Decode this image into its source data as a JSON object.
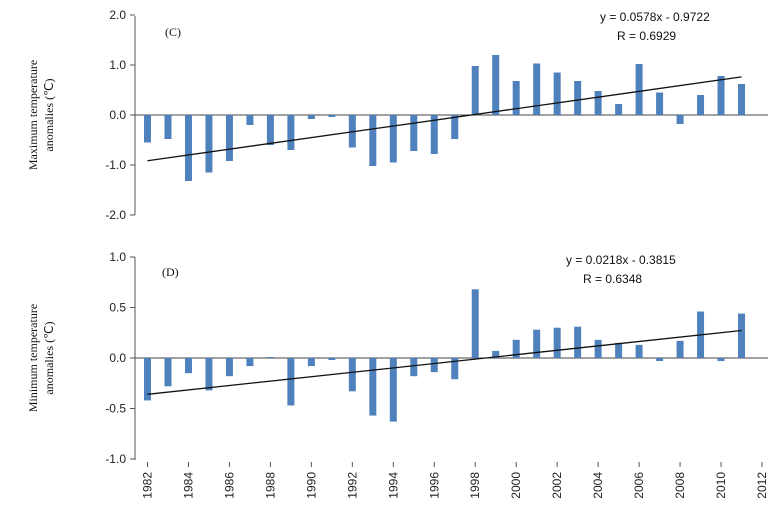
{
  "chart_data": [
    {
      "type": "bar",
      "panel_label": "(C)",
      "ylabel_lines": [
        "Maximum temperature",
        "anomalies (℃)"
      ],
      "ylim": [
        -2.0,
        2.0
      ],
      "yticks": [
        "2.0",
        "1.0",
        "0.0",
        "-1.0",
        "-2.0"
      ],
      "ytick_values": [
        2.0,
        1.0,
        0.0,
        -1.0,
        -2.0
      ],
      "x": [
        1982,
        1983,
        1984,
        1985,
        1986,
        1987,
        1988,
        1989,
        1990,
        1991,
        1992,
        1993,
        1994,
        1995,
        1996,
        1997,
        1998,
        1999,
        2000,
        2001,
        2002,
        2003,
        2004,
        2005,
        2006,
        2007,
        2008,
        2009,
        2010,
        2011
      ],
      "values": [
        -0.55,
        -0.48,
        -1.32,
        -1.15,
        -0.92,
        -0.2,
        -0.6,
        -0.7,
        -0.08,
        -0.04,
        -0.65,
        -1.02,
        -0.95,
        -0.72,
        -0.78,
        -0.48,
        0.98,
        1.2,
        0.68,
        1.03,
        0.85,
        0.68,
        0.48,
        0.22,
        1.02,
        0.45,
        -0.18,
        0.4,
        0.78,
        0.62
      ],
      "color": "#4f81bd",
      "trendline": {
        "slope": 0.0578,
        "intercept": -0.9722
      },
      "equation": [
        "y = 0.0578x - 0.9722",
        "R = 0.6929"
      ]
    },
    {
      "type": "bar",
      "panel_label": "(D)",
      "ylabel_lines": [
        "Minimum temperature",
        "anomalies (℃)"
      ],
      "ylim": [
        -1.0,
        1.0
      ],
      "yticks": [
        "1.0",
        "0.5",
        "0.0",
        "-0.5",
        "-1.0"
      ],
      "ytick_values": [
        1.0,
        0.5,
        0.0,
        -0.5,
        -1.0
      ],
      "x": [
        1982,
        1983,
        1984,
        1985,
        1986,
        1987,
        1988,
        1989,
        1990,
        1991,
        1992,
        1993,
        1994,
        1995,
        1996,
        1997,
        1998,
        1999,
        2000,
        2001,
        2002,
        2003,
        2004,
        2005,
        2006,
        2007,
        2008,
        2009,
        2010,
        2011
      ],
      "values": [
        -0.42,
        -0.28,
        -0.15,
        -0.32,
        -0.18,
        -0.08,
        0.01,
        -0.47,
        -0.08,
        -0.02,
        -0.33,
        -0.57,
        -0.63,
        -0.18,
        -0.14,
        -0.21,
        0.68,
        0.07,
        0.18,
        0.28,
        0.3,
        0.31,
        0.18,
        0.15,
        0.13,
        -0.03,
        0.17,
        0.46,
        -0.03,
        0.44
      ],
      "color": "#4f81bd",
      "trendline": {
        "slope": 0.0218,
        "intercept": -0.3815
      },
      "equation": [
        "y = 0.0218x - 0.3815",
        "R = 0.6348"
      ]
    }
  ],
  "xaxis": {
    "tick_labels": [
      "1982",
      "1984",
      "1986",
      "1988",
      "1990",
      "1992",
      "1994",
      "1996",
      "1998",
      "2000",
      "2002",
      "2004",
      "2006",
      "2008",
      "2010",
      "2012"
    ],
    "tick_values": [
      1982,
      1984,
      1986,
      1988,
      1990,
      1992,
      1994,
      1996,
      1998,
      2000,
      2002,
      2004,
      2006,
      2008,
      2010,
      2012
    ]
  }
}
